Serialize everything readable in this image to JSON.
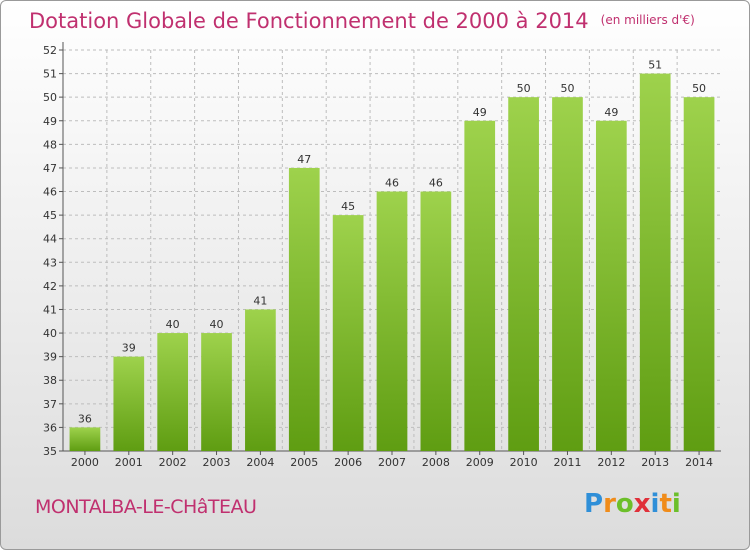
{
  "title": "Dotation Globale de Fonctionnement de 2000 à 2014",
  "subtitle": "(en milliers d'€)",
  "location": "MONTALBA-LE-CHâTEAU",
  "logo": {
    "letters": [
      "P",
      "r",
      "o",
      "x",
      "i",
      "t",
      "i"
    ],
    "colors": [
      "#2f8fd8",
      "#f08c1a",
      "#6cbf2a",
      "#e0303a",
      "#2f8fd8",
      "#f08c1a",
      "#6cbf2a"
    ]
  },
  "colors": {
    "accent": "#c0306f",
    "bar_top": "#9ed24c",
    "bar_bottom": "#5f9d12",
    "grid": "#bdbdbd"
  },
  "chart_data": {
    "type": "bar",
    "categories": [
      "2000",
      "2001",
      "2002",
      "2003",
      "2004",
      "2005",
      "2006",
      "2007",
      "2008",
      "2009",
      "2010",
      "2011",
      "2012",
      "2013",
      "2014"
    ],
    "values": [
      36,
      39,
      40,
      40,
      41,
      47,
      45,
      46,
      46,
      49,
      50,
      50,
      49,
      51,
      50
    ],
    "ylim": [
      35,
      52
    ],
    "yticks": [
      35,
      36,
      37,
      38,
      39,
      40,
      41,
      42,
      43,
      44,
      45,
      46,
      47,
      48,
      49,
      50,
      51,
      52
    ],
    "grid": true,
    "data_labels": true
  }
}
